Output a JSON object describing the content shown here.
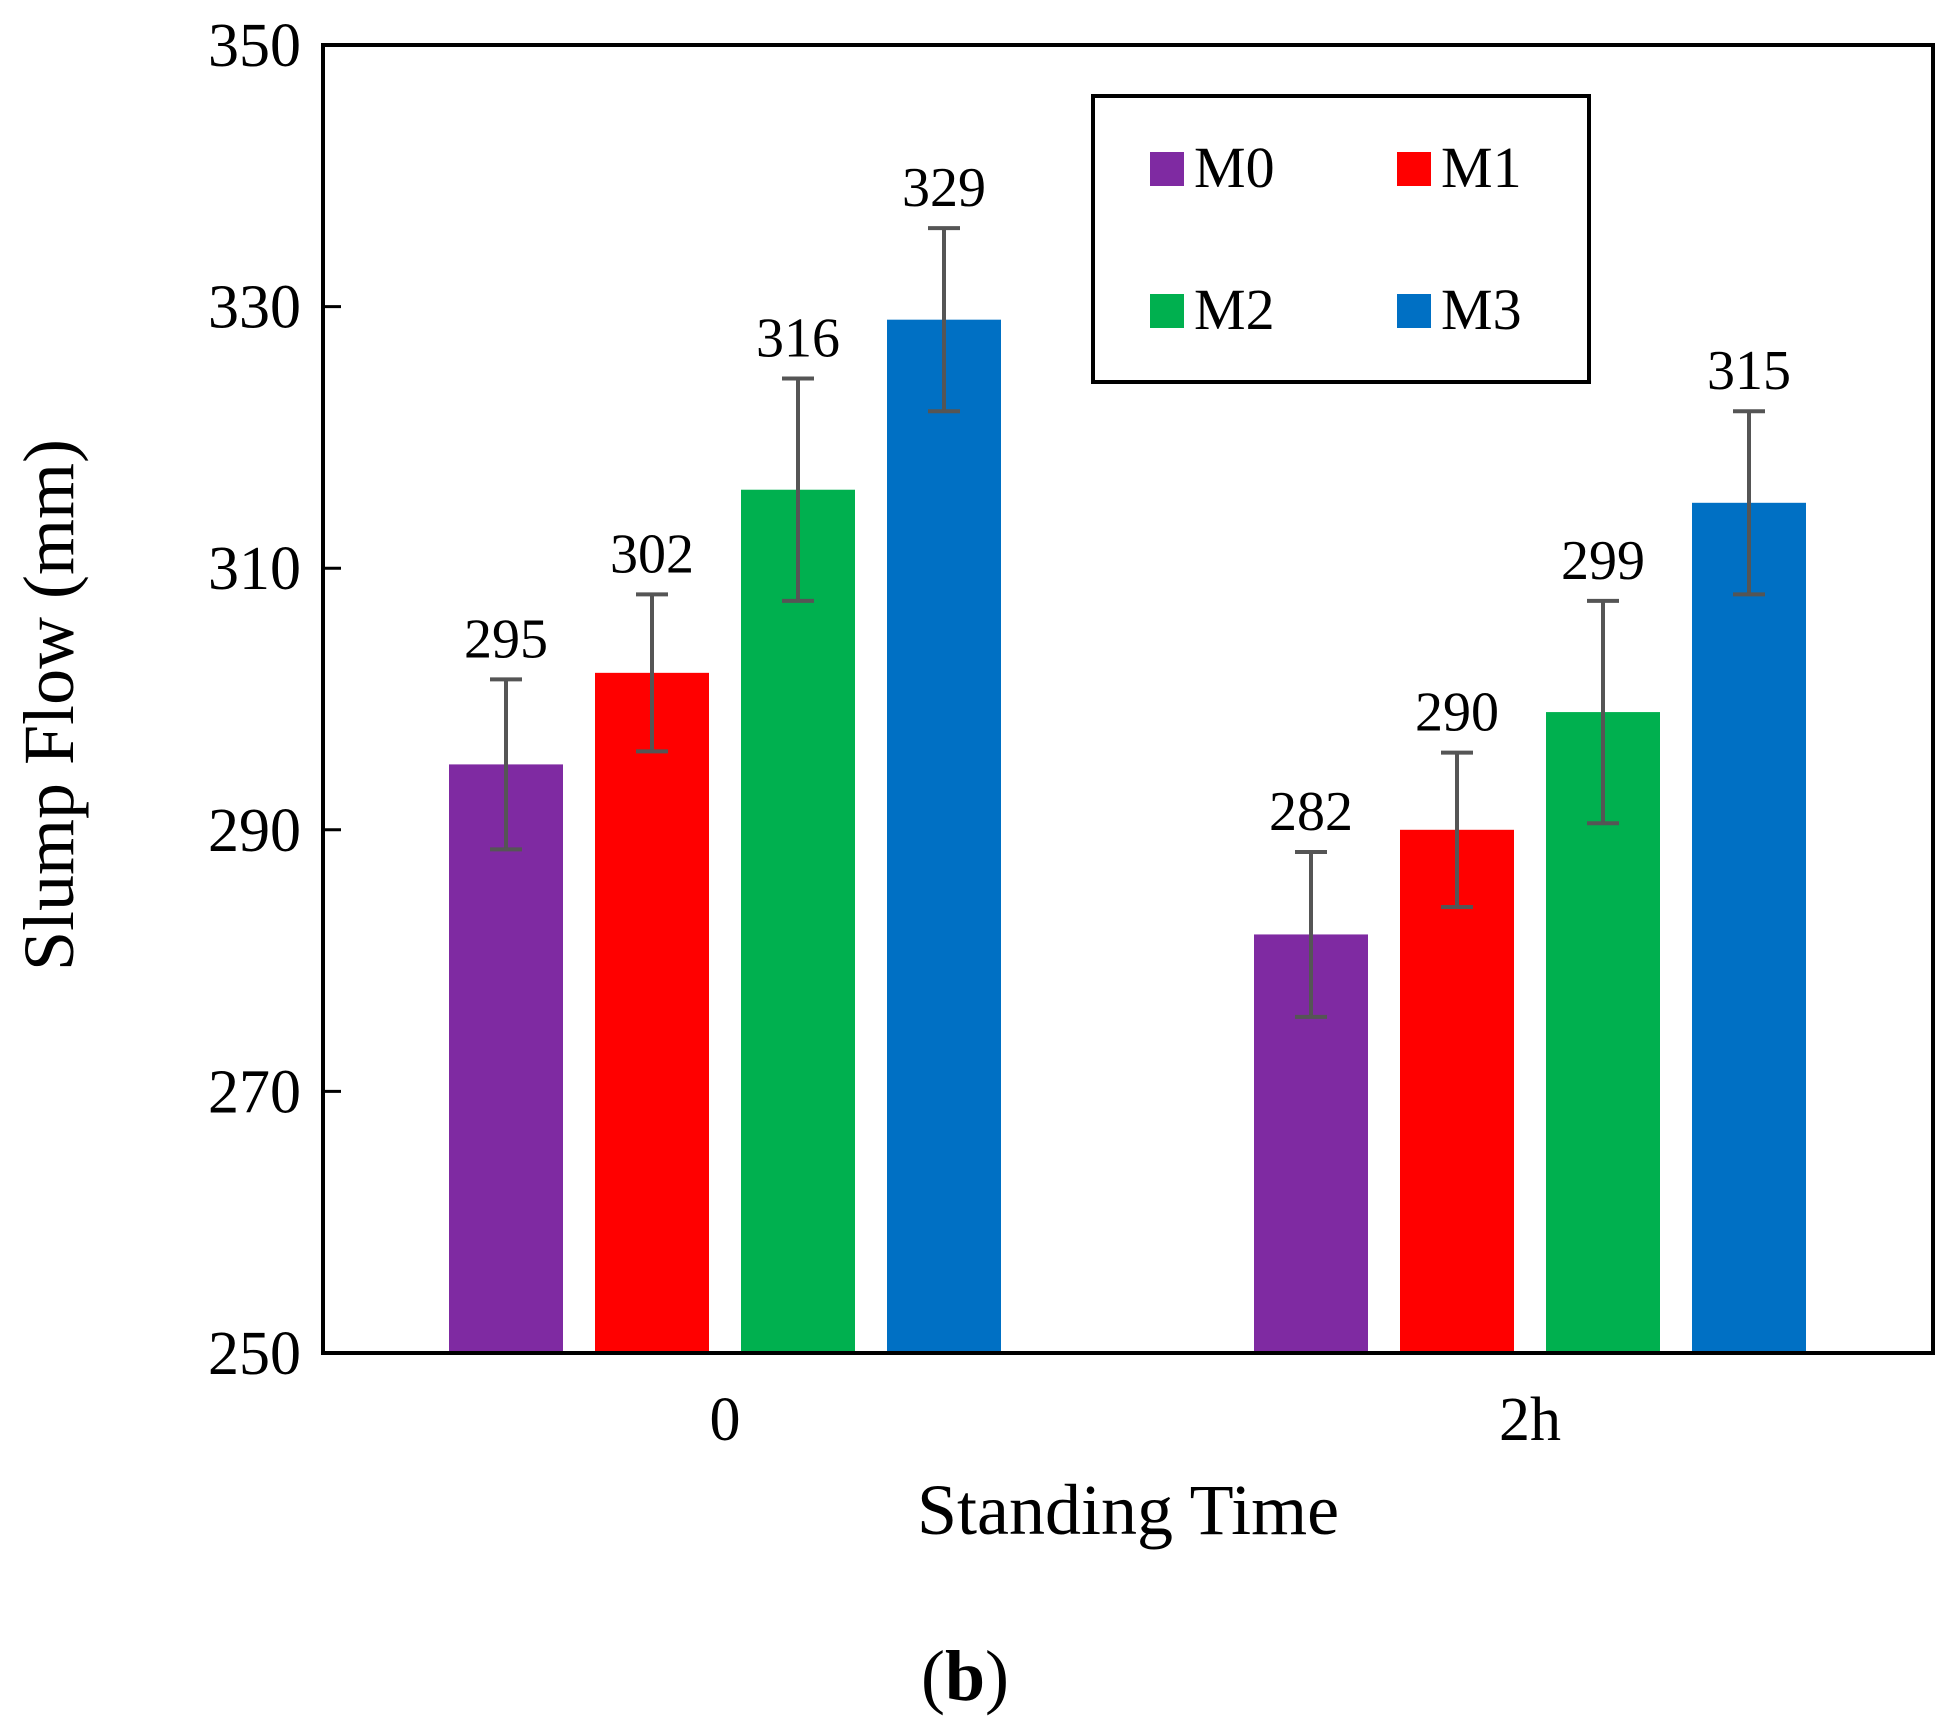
{
  "chart_data": {
    "type": "bar",
    "title": "",
    "xlabel": "Standing Time",
    "ylabel": "Slump Flow (mm)",
    "categories": [
      "0",
      "2h"
    ],
    "ylim": [
      250,
      350
    ],
    "yticks": [
      250,
      270,
      290,
      310,
      330,
      350
    ],
    "grid": false,
    "legend_position": "top-right",
    "series": [
      {
        "name": "M0",
        "color": "#7f2aa2",
        "values": [
          295,
          282
        ],
        "labels": [
          "295",
          "282"
        ],
        "errors": [
          6.5,
          6.3
        ]
      },
      {
        "name": "M1",
        "color": "#ff0000",
        "values": [
          302,
          290
        ],
        "labels": [
          "302",
          "290"
        ],
        "errors": [
          6.0,
          5.9
        ]
      },
      {
        "name": "M2",
        "color": "#00b04f",
        "values": [
          316,
          299
        ],
        "labels": [
          "316",
          "299"
        ],
        "errors": [
          8.5,
          8.5
        ]
      },
      {
        "name": "M3",
        "color": "#0070c4",
        "values": [
          329,
          315
        ],
        "labels": [
          "329",
          "315"
        ],
        "errors": [
          7.0,
          7.0
        ]
      }
    ],
    "error_bar_color": "#555555",
    "panel_label": {
      "open": "(",
      "letter": "b",
      "close": ")"
    }
  }
}
